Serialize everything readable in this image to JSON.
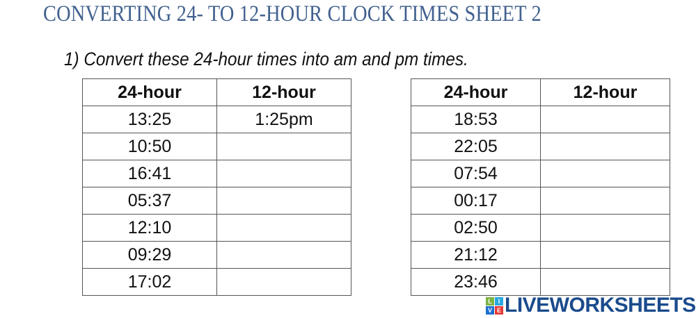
{
  "title": "CONVERTING 24- TO 12-HOUR CLOCK TIMES SHEET 2",
  "instruction": "1) Convert these 24-hour times into am and pm times.",
  "tables": [
    {
      "headers": [
        "24-hour",
        "12-hour"
      ],
      "rows": [
        [
          "13:25",
          "1:25pm"
        ],
        [
          "10:50",
          ""
        ],
        [
          "16:41",
          ""
        ],
        [
          "05:37",
          ""
        ],
        [
          "12:10",
          ""
        ],
        [
          "09:29",
          ""
        ],
        [
          "17:02",
          ""
        ]
      ]
    },
    {
      "headers": [
        "24-hour",
        "12-hour"
      ],
      "rows": [
        [
          "18:53",
          ""
        ],
        [
          "22:05",
          ""
        ],
        [
          "07:54",
          ""
        ],
        [
          "00:17",
          ""
        ],
        [
          "02:50",
          ""
        ],
        [
          "21:12",
          ""
        ],
        [
          "23:46",
          ""
        ]
      ]
    }
  ],
  "watermark": {
    "text": "LIVEWORKSHEETS",
    "blocks": [
      "L",
      "I",
      "V",
      "E"
    ],
    "block_colors": [
      "#7cb342",
      "#29a8e0",
      "#1e6fd0",
      "#e53935"
    ],
    "color": "#1a4b8c"
  }
}
